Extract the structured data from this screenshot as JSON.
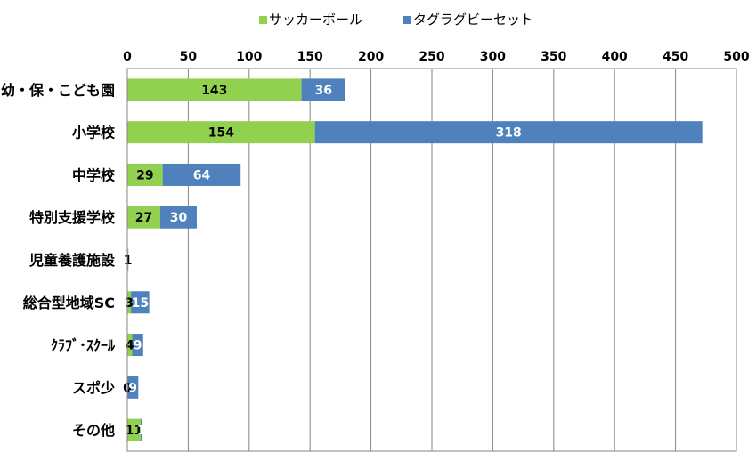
{
  "chart_data": {
    "type": "bar",
    "orientation": "horizontal",
    "stacked": true,
    "categories": [
      "幼・保・こども園",
      "小学校",
      "中学校",
      "特別支援学校",
      "児童養護施設",
      "総合型地域SC",
      "ｸﾗﾌﾞ･ｽｸｰﾙ",
      "スポ少",
      "その他"
    ],
    "series": [
      {
        "name": "サッカーボール",
        "color": "#92d050",
        "values": [
          143,
          154,
          29,
          27,
          1,
          3,
          4,
          0,
          11
        ]
      },
      {
        "name": "タグラグビーセット",
        "color": "#4f81bd",
        "values": [
          36,
          318,
          64,
          30,
          0,
          15,
          9,
          9,
          1
        ]
      }
    ],
    "data_labels": [
      [
        "143",
        "154",
        "29",
        "27",
        "1",
        "3",
        "4",
        "0",
        "11"
      ],
      [
        "36",
        "318",
        "64",
        "30",
        "",
        "15",
        "9",
        "9",
        "1"
      ]
    ],
    "xlim": [
      0,
      500
    ],
    "xticks": [
      "0",
      "50",
      "100",
      "150",
      "200",
      "250",
      "300",
      "350",
      "400",
      "450",
      "500"
    ],
    "x_axis_position": "top",
    "grid": true,
    "legend": "top"
  }
}
